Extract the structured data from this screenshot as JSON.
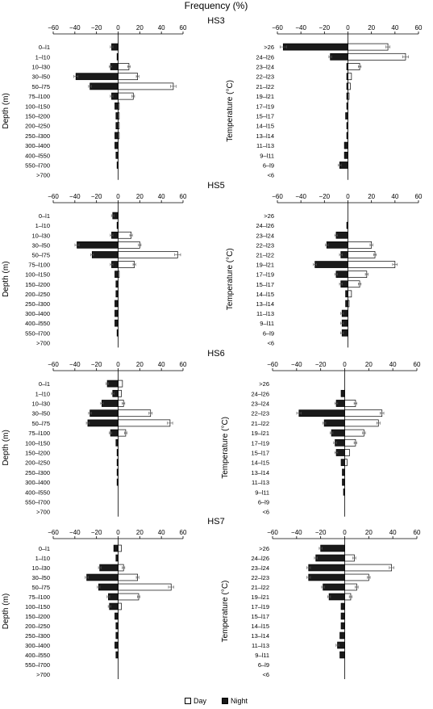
{
  "figure_title": "Frequency (%)",
  "legend": [
    {
      "label": "Day",
      "color": "#ffffff"
    },
    {
      "label": "Night",
      "color": "#1a1a1a"
    }
  ],
  "chart_data": [
    {
      "type": "bar",
      "orientation": "horizontal",
      "panel_title": "HS3",
      "ylabel": "Depth (m)",
      "xlim": [
        -60,
        60
      ],
      "xticks": [
        -60,
        -40,
        -20,
        0,
        20,
        40,
        60
      ],
      "categories": [
        "0–l1",
        "1–l10",
        "10–l30",
        "30–l50",
        "50–l75",
        "75–l100",
        "100–l150",
        "150–l200",
        "200–l250",
        "250–l300",
        "300–l400",
        "400–l550",
        "550–l700",
        ">700"
      ],
      "series": [
        {
          "name": "Day",
          "values": [
            0,
            0,
            10,
            18,
            51,
            14,
            1,
            1,
            1,
            1,
            0,
            0,
            0,
            0
          ]
        },
        {
          "name": "Night",
          "values": [
            -6,
            -1,
            -7,
            -39,
            -26,
            -6,
            -3,
            -2,
            -2,
            -3,
            -3,
            -2,
            -1,
            0
          ]
        }
      ]
    },
    {
      "type": "bar",
      "orientation": "horizontal",
      "panel_title": "",
      "ylabel": "Temperature (°C)",
      "xlim": [
        -60,
        60
      ],
      "xticks": [
        -60,
        -40,
        -20,
        0,
        20,
        40,
        60
      ],
      "categories": [
        ">26",
        "24–l26",
        "23–l24",
        "22–l23",
        "21–l22",
        "19–l21",
        "17–l19",
        "15–l17",
        "14–l15",
        "13–l14",
        "11–l13",
        "9–l11",
        "6–l9",
        "<6"
      ],
      "series": [
        {
          "name": "Day",
          "values": [
            34,
            49,
            10,
            3,
            2,
            1,
            0,
            0,
            0,
            0,
            0,
            0,
            0,
            0
          ]
        },
        {
          "name": "Night",
          "values": [
            -55,
            -15,
            -1,
            -1,
            -1,
            -1,
            -1,
            -2,
            -1,
            -1,
            -3,
            -3,
            -7,
            0
          ]
        }
      ]
    },
    {
      "type": "bar",
      "orientation": "horizontal",
      "panel_title": "HS5",
      "ylabel": "Depth (m)",
      "xlim": [
        -60,
        60
      ],
      "xticks": [
        -60,
        -40,
        -20,
        0,
        20,
        40,
        60
      ],
      "categories": [
        "0–l1",
        "1–l10",
        "10–l30",
        "30–l50",
        "50–l75",
        "75–l100",
        "100–l150",
        "150–l200",
        "200–l250",
        "250–l300",
        "300–l400",
        "400–l550",
        "550–l700",
        ">700"
      ],
      "series": [
        {
          "name": "Day",
          "values": [
            0,
            0,
            12,
            20,
            55,
            15,
            1,
            0,
            0,
            0,
            0,
            0,
            0,
            0
          ]
        },
        {
          "name": "Night",
          "values": [
            -5,
            -1,
            -6,
            -38,
            -24,
            -6,
            -3,
            -2,
            -2,
            -3,
            -3,
            -3,
            -1,
            0
          ]
        }
      ]
    },
    {
      "type": "bar",
      "orientation": "horizontal",
      "panel_title": "",
      "ylabel": "Temperature (°C)",
      "xlim": [
        -60,
        60
      ],
      "xticks": [
        -60,
        -40,
        -20,
        0,
        20,
        40,
        60
      ],
      "categories": [
        ">26",
        "24–l26",
        "23–l24",
        "22–l23",
        "21–l22",
        "19–l21",
        "17–l19",
        "15–l17",
        "14–l15",
        "13–l14",
        "11–l13",
        "9–l11",
        "6–l9",
        "<6"
      ],
      "series": [
        {
          "name": "Day",
          "values": [
            0,
            0,
            0,
            20,
            23,
            40,
            16,
            10,
            3,
            1,
            0,
            0,
            0,
            0
          ]
        },
        {
          "name": "Night",
          "values": [
            0,
            -1,
            -10,
            -18,
            -6,
            -28,
            -10,
            -6,
            -2,
            -2,
            -5,
            -5,
            -5,
            0
          ]
        }
      ]
    },
    {
      "type": "bar",
      "orientation": "horizontal",
      "panel_title": "HS6",
      "ylabel": "Depth (m)",
      "xlim": [
        -60,
        60
      ],
      "xticks": [
        -60,
        -40,
        -20,
        0,
        20,
        40,
        60
      ],
      "categories": [
        "0–l1",
        "1–l10",
        "10–l30",
        "30–l50",
        "50–l75",
        "75–l100",
        "100–l150",
        "150–l200",
        "200–l250",
        "250–l300",
        "300–l400",
        "400–l550",
        "550–l700",
        ">700"
      ],
      "series": [
        {
          "name": "Day",
          "values": [
            4,
            3,
            5,
            30,
            48,
            7,
            0,
            0,
            0,
            0,
            0,
            0,
            0,
            0
          ]
        },
        {
          "name": "Night",
          "values": [
            -10,
            -5,
            -15,
            -26,
            -28,
            -7,
            -2,
            -1,
            -1,
            -1,
            -1,
            0,
            0,
            0
          ]
        }
      ]
    },
    {
      "type": "bar",
      "orientation": "horizontal",
      "panel_title": "",
      "ylabel": "Temperature (°C)",
      "xlim": [
        -60,
        60
      ],
      "xticks": [
        -60,
        -40,
        -20,
        0,
        20,
        40,
        60
      ],
      "categories": [
        ">26",
        "24–l26",
        "23–l24",
        "22–l23",
        "21–l22",
        "19–l21",
        "17–l19",
        "15–l17",
        "14–l15",
        "13–l14",
        "11–l13",
        "9–l11",
        "6–l9",
        "<6"
      ],
      "series": [
        {
          "name": "Day",
          "values": [
            0,
            0,
            9,
            31,
            28,
            16,
            9,
            4,
            2,
            0,
            0,
            0,
            0,
            0
          ]
        },
        {
          "name": "Night",
          "values": [
            0,
            -3,
            -7,
            -38,
            -17,
            -11,
            -8,
            -7,
            -3,
            -2,
            -2,
            -1,
            0,
            0
          ]
        }
      ]
    },
    {
      "type": "bar",
      "orientation": "horizontal",
      "panel_title": "HS7",
      "ylabel": "Depth (m)",
      "xlim": [
        -60,
        60
      ],
      "xticks": [
        -60,
        -40,
        -20,
        0,
        20,
        40,
        60
      ],
      "categories": [
        "0–l1",
        "1–l10",
        "10–l30",
        "30–l50",
        "50–l75",
        "75–l100",
        "100–l150",
        "150–l200",
        "200–l250",
        "250–l300",
        "300–l400",
        "400–l550",
        "550–l700",
        ">700"
      ],
      "series": [
        {
          "name": "Day",
          "values": [
            3,
            0,
            5,
            18,
            49,
            19,
            3,
            0,
            0,
            0,
            0,
            0,
            0,
            0
          ]
        },
        {
          "name": "Night",
          "values": [
            -4,
            -2,
            -17,
            -29,
            -18,
            -9,
            -8,
            -3,
            -2,
            -2,
            -3,
            -2,
            0,
            0
          ]
        }
      ]
    },
    {
      "type": "bar",
      "orientation": "horizontal",
      "panel_title": "",
      "ylabel": "Temperature (°C)",
      "xlim": [
        -60,
        60
      ],
      "xticks": [
        -60,
        -40,
        -20,
        0,
        20,
        40,
        60
      ],
      "categories": [
        ">26",
        "24–l26",
        "23–l24",
        "22–l23",
        "21–l22",
        "19–l21",
        "17–l19",
        "15–l17",
        "14–l15",
        "13–l14",
        "11–l13",
        "9–l11",
        "6–l9",
        "<6"
      ],
      "series": [
        {
          "name": "Day",
          "values": [
            0,
            8,
            39,
            20,
            10,
            5,
            0,
            0,
            0,
            0,
            0,
            0,
            0,
            0
          ]
        },
        {
          "name": "Night",
          "values": [
            -20,
            -24,
            -30,
            -30,
            -18,
            -13,
            -3,
            -3,
            -3,
            -4,
            -6,
            -4,
            0,
            0
          ]
        }
      ]
    }
  ]
}
